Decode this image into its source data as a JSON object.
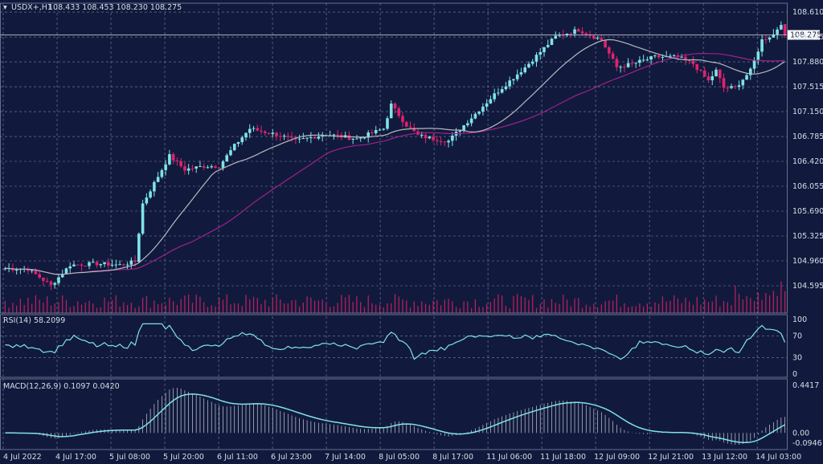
{
  "colors": {
    "background": "#111a3c",
    "grid": "#7e86a6",
    "bull": "#7fe3e6",
    "bear": "#e0226e",
    "ma_fast": "#b8b8c0",
    "ma_slow": "#a0208c",
    "volume": "#c0205f",
    "rsi": "#7fe3e6",
    "macd": "#7fe3e6",
    "axis_text": "#d8dde8"
  },
  "header": {
    "symbol_label": "USDX+,H1",
    "ohlc_text": "108.433 108.453 108.230 108.275"
  },
  "price_tag": "108.275",
  "chart_data": {
    "type": "candlestick",
    "symbol": "USDX+",
    "timeframe": "H1",
    "last": {
      "open": 108.433,
      "high": 108.453,
      "low": 108.23,
      "close": 108.275
    },
    "price_axis_ticks": [
      "108.610",
      "108.245",
      "107.880",
      "107.515",
      "107.150",
      "106.785",
      "106.420",
      "106.055",
      "105.690",
      "105.325",
      "104.960",
      "104.595"
    ],
    "ylim": [
      104.43,
      108.74
    ],
    "x_labels": [
      "4 Jul 2022",
      "4 Jul 17:00",
      "5 Jul 08:00",
      "5 Jul 20:00",
      "6 Jul 11:00",
      "6 Jul 23:00",
      "7 Jul 14:00",
      "8 Jul 05:00",
      "8 Jul 17:00",
      "11 Jul 06:00",
      "11 Jul 18:00",
      "12 Jul 09:00",
      "12 Jul 21:00",
      "13 Jul 12:00",
      "14 Jul 03:00"
    ],
    "key_points": [
      [
        0,
        104.85
      ],
      [
        6,
        104.84
      ],
      [
        12,
        104.6
      ],
      [
        17,
        104.9
      ],
      [
        24,
        104.92
      ],
      [
        30,
        104.9
      ],
      [
        34,
        104.95
      ],
      [
        36,
        105.8
      ],
      [
        39,
        106.1
      ],
      [
        43,
        106.5
      ],
      [
        47,
        106.3
      ],
      [
        52,
        106.35
      ],
      [
        56,
        106.35
      ],
      [
        60,
        106.65
      ],
      [
        64,
        106.9
      ],
      [
        68,
        106.85
      ],
      [
        72,
        106.8
      ],
      [
        76,
        106.72
      ],
      [
        84,
        106.82
      ],
      [
        92,
        106.75
      ],
      [
        99,
        106.9
      ],
      [
        101,
        107.25
      ],
      [
        105,
        106.95
      ],
      [
        108,
        106.8
      ],
      [
        112,
        106.75
      ],
      [
        116,
        106.72
      ],
      [
        120,
        106.95
      ],
      [
        128,
        107.4
      ],
      [
        136,
        107.8
      ],
      [
        144,
        108.25
      ],
      [
        150,
        108.35
      ],
      [
        156,
        108.2
      ],
      [
        160,
        107.8
      ],
      [
        164,
        107.85
      ],
      [
        170,
        107.95
      ],
      [
        176,
        107.95
      ],
      [
        180,
        107.85
      ],
      [
        184,
        107.6
      ],
      [
        186,
        107.75
      ],
      [
        188,
        107.5
      ],
      [
        191,
        107.5
      ],
      [
        195,
        107.75
      ],
      [
        198,
        108.2
      ],
      [
        201,
        108.28
      ],
      [
        203,
        108.45
      ],
      [
        204,
        108.28
      ]
    ],
    "ma_fast_period_label": "",
    "indicators": {
      "rsi": {
        "label": "RSI(14) 58.2099",
        "levels": [
          "100",
          "70",
          "30",
          "0"
        ],
        "ylim": [
          0,
          100
        ]
      },
      "macd": {
        "label": "MACD(12,26,9) 0.1097 0.0420",
        "ticks": [
          "0.4417",
          "0.00",
          "-0.0946"
        ],
        "ylim": [
          -0.0946,
          0.4417
        ]
      }
    }
  }
}
